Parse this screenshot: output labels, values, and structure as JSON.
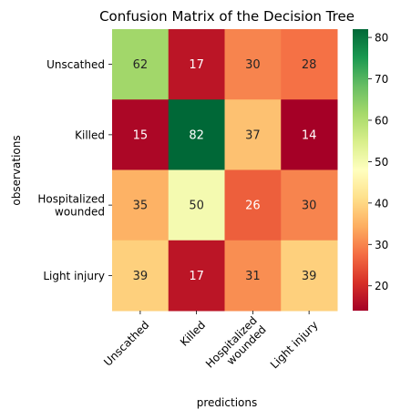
{
  "chart_data": {
    "type": "heatmap",
    "title": "Confusion Matrix of the Decision Tree",
    "xlabel": "predictions",
    "ylabel": "observations",
    "x_labels": [
      "Unscathed",
      "Killed",
      "Hospitalized\nwounded",
      "Light injury"
    ],
    "y_labels": [
      "Unscathed",
      "Killed",
      "Hospitalized\nwounded",
      "Light injury"
    ],
    "values": [
      [
        62,
        17,
        30,
        28
      ],
      [
        15,
        82,
        37,
        14
      ],
      [
        35,
        50,
        26,
        30
      ],
      [
        39,
        17,
        31,
        39
      ]
    ],
    "colormap": "RdYlGn",
    "color_range": [
      14,
      82
    ],
    "colorbar_ticks": [
      20,
      30,
      40,
      50,
      60,
      70,
      80
    ]
  }
}
